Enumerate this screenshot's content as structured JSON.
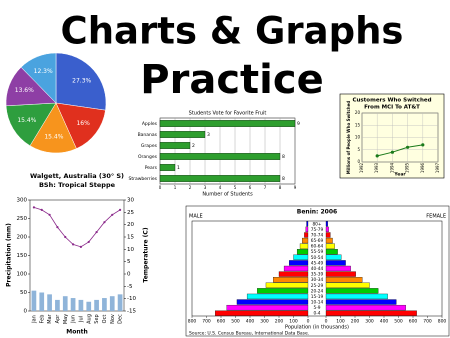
{
  "title_lines": [
    "Charts & Graphs",
    "Practice"
  ],
  "chart_data": [
    {
      "type": "pie",
      "values": [
        27.3,
        16,
        15.4,
        15.4,
        13.6,
        12.3
      ],
      "value_labels": [
        "27.3%",
        "16%",
        "15.4%",
        "15.4%",
        "13.6%",
        "12.3%"
      ],
      "colors": [
        "#3a5fcd",
        "#e0301e",
        "#f7941d",
        "#2e9e3e",
        "#8e3fa5",
        "#4aa3df"
      ]
    },
    {
      "type": "bar",
      "orientation": "horizontal",
      "title": "Students Vote for Favorite Fruit",
      "categories": [
        "Apples",
        "Bananas",
        "Grapes",
        "Oranges",
        "Pears",
        "Strawberries"
      ],
      "values": [
        9,
        3,
        2,
        8,
        1,
        8
      ],
      "color": "#2e9e2e",
      "xlim": [
        0,
        9
      ],
      "xticks": [
        0,
        1,
        2,
        3,
        4,
        5,
        6,
        7,
        8,
        9
      ],
      "xlabel": "Number of Students",
      "grid": true
    },
    {
      "type": "line",
      "title": "Customers Who Switched",
      "subtitle": "From MCI To AT&T",
      "x": [
        1993,
        1994,
        1995,
        1996
      ],
      "values": [
        2.5,
        4,
        6,
        7
      ],
      "color": "#1a7a1a",
      "xlim": [
        1992,
        1997
      ],
      "xticks": [
        1992,
        1993,
        1994,
        1995,
        1996,
        1997
      ],
      "ylim": [
        0,
        20
      ],
      "yticks": [
        0,
        5,
        10,
        15,
        20
      ],
      "ylabel": "Millions of People Who Switched",
      "xlabel": "Year",
      "background": "#ffffe0"
    },
    {
      "type": "climograph",
      "title": "Walgett, Australia (30° S)",
      "subtitle": "BSh: Tropical Steppe",
      "categories": [
        "Jan",
        "Feb",
        "Mar",
        "Apr",
        "May",
        "Jun",
        "Jul",
        "Aug",
        "Sep",
        "Oct",
        "Nov",
        "Dec"
      ],
      "series": [
        {
          "name": "Precipitation (mm)",
          "type": "bar",
          "color": "#8fb4d9",
          "values": [
            55,
            50,
            45,
            30,
            40,
            35,
            30,
            25,
            30,
            35,
            40,
            45
          ]
        },
        {
          "name": "Temperature (C)",
          "type": "line",
          "axis": "y2",
          "color": "#8b2a8b",
          "values": [
            27,
            26,
            24,
            19,
            15,
            12,
            11,
            13,
            17,
            21,
            24,
            26
          ]
        }
      ],
      "ylim": [
        0,
        300
      ],
      "yticks": [
        0,
        50,
        100,
        150,
        200,
        250,
        300
      ],
      "y2lim": [
        -15,
        30
      ],
      "y2ticks": [
        -15,
        -10,
        -5,
        0,
        5,
        10,
        15,
        20,
        25,
        30
      ],
      "xlabel": "Month"
    },
    {
      "type": "pyramid",
      "title": "Benin: 2006",
      "categories": [
        "0-4",
        "5-9",
        "10-14",
        "15-19",
        "20-24",
        "25-29",
        "30-34",
        "35-39",
        "40-44",
        "45-49",
        "50-54",
        "55-59",
        "60-64",
        "65-69",
        "70-74",
        "75-79",
        "80+"
      ],
      "series": [
        {
          "name": "MALE",
          "values": [
            640,
            560,
            490,
            420,
            350,
            290,
            240,
            200,
            165,
            130,
            100,
            75,
            55,
            40,
            25,
            15,
            10
          ]
        },
        {
          "name": "FEMALE",
          "values": [
            625,
            550,
            485,
            425,
            360,
            300,
            250,
            205,
            170,
            135,
            105,
            80,
            60,
            45,
            30,
            18,
            12
          ]
        }
      ],
      "colors": [
        "#ff0000",
        "#ff00ff",
        "#0000ff",
        "#00ffff",
        "#00cc00",
        "#ffff00",
        "#ff8800"
      ],
      "xlim": [
        0,
        800
      ],
      "xticks": [
        0,
        100,
        200,
        300,
        400,
        500,
        600,
        700,
        800
      ],
      "xlabel": "Population (in thousands)",
      "source": "Source: U.S. Census Bureau, International Data Base."
    }
  ]
}
